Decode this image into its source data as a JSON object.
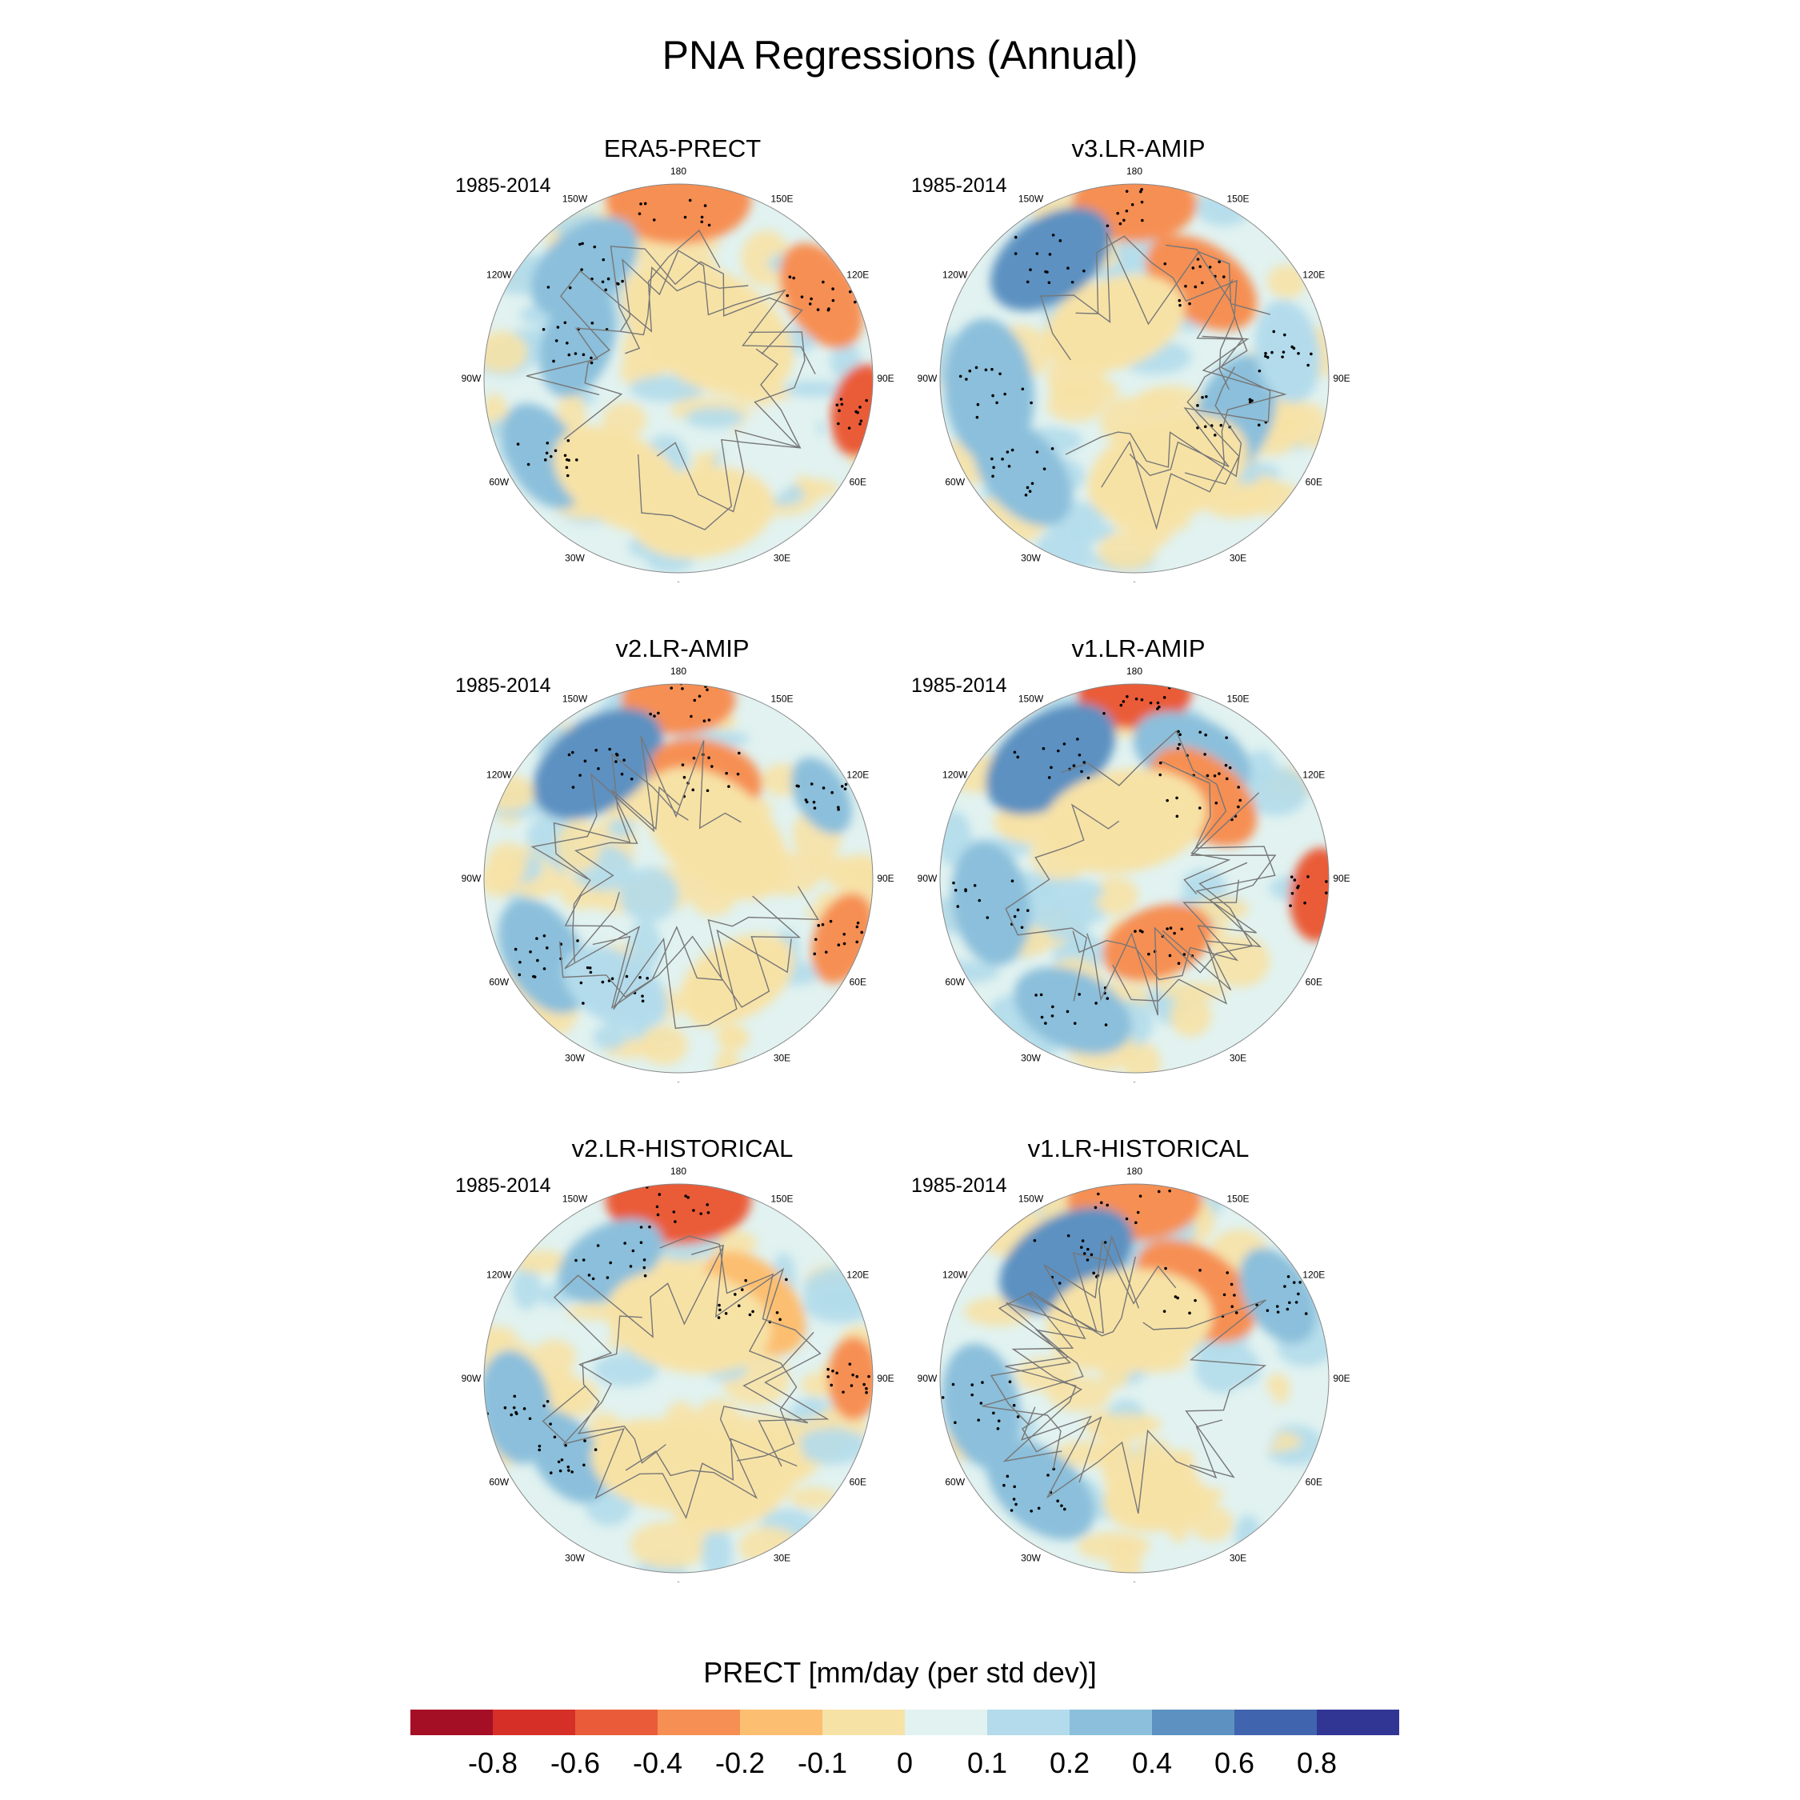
{
  "title": "PNA Regressions (Annual)",
  "period": "1985-2014",
  "panels": [
    {
      "title": "ERA5-PRECT",
      "seed": 11
    },
    {
      "title": "v3.LR-AMIP",
      "seed": 23
    },
    {
      "title": "v2.LR-AMIP",
      "seed": 37
    },
    {
      "title": "v1.LR-AMIP",
      "seed": 41
    },
    {
      "title": "v2.LR-HISTORICAL",
      "seed": 53
    },
    {
      "title": "v1.LR-HISTORICAL",
      "seed": 67
    }
  ],
  "longitude_labels": [
    "180",
    "150E",
    "120E",
    "90E",
    "60E",
    "30E",
    "0",
    "30W",
    "60W",
    "90W",
    "120W",
    "150W"
  ],
  "colorbar": {
    "title": "PRECT [mm/day (per std dev)]",
    "colors": [
      "#a50f26",
      "#d62f27",
      "#ea5c39",
      "#f68f53",
      "#fcbe70",
      "#f7e2a6",
      "#e1f2f0",
      "#b3dbeb",
      "#8bbfdb",
      "#5c91c1",
      "#4064ad",
      "#313695"
    ],
    "labels": [
      "-0.8",
      "-0.6",
      "-0.4",
      "-0.2",
      "-0.1",
      "0",
      "0.1",
      "0.2",
      "0.4",
      "0.6",
      "0.8"
    ]
  }
}
